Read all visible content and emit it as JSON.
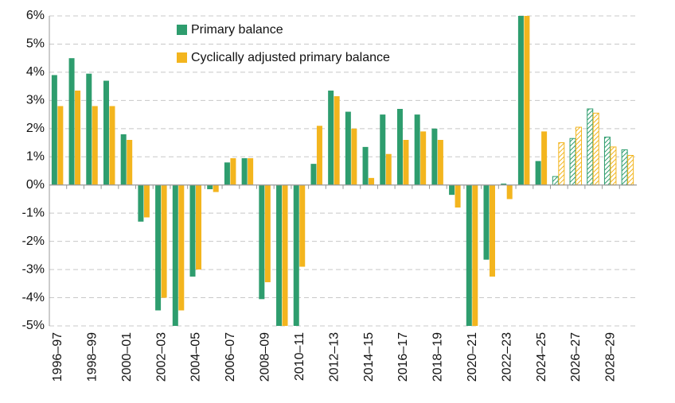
{
  "chart_data": {
    "type": "bar",
    "categories": [
      "1996–97",
      null,
      "1998–99",
      null,
      "2000–01",
      null,
      "2002–03",
      null,
      "2004–05",
      null,
      "2006–07",
      null,
      "2008–09",
      null,
      "2010–11",
      null,
      "2012–13",
      null,
      "2014–15",
      null,
      "2016–17",
      null,
      "2018–19",
      null,
      "2020–21",
      null,
      "2022–23",
      null,
      "2024–25",
      null,
      "2026–27",
      null,
      "2028–29",
      null
    ],
    "series": [
      {
        "name": "Primary balance",
        "color": "#2e9d6e",
        "values": [
          3.9,
          4.5,
          3.95,
          3.7,
          1.8,
          -1.3,
          -4.45,
          -5,
          -3.25,
          -0.15,
          0.8,
          0.95,
          -4.05,
          -5,
          -5,
          0.75,
          3.35,
          2.6,
          1.35,
          2.5,
          2.7,
          2.5,
          2.0,
          -0.35,
          -5,
          -2.65,
          0.05,
          6,
          0.85,
          0.3,
          1.65,
          2.7,
          1.7,
          1.25
        ]
      },
      {
        "name": "Cyclically adjusted primary balance",
        "color": "#f3b51e",
        "values": [
          2.8,
          3.35,
          2.8,
          2.8,
          1.6,
          -1.15,
          -4.0,
          -4.45,
          -3.0,
          -0.25,
          0.95,
          0.95,
          -3.45,
          -5,
          -2.9,
          2.1,
          3.15,
          2.0,
          0.25,
          1.1,
          1.6,
          1.9,
          1.6,
          -0.8,
          -5,
          -3.25,
          -0.5,
          6,
          1.9,
          1.5,
          2.05,
          2.55,
          1.35,
          1.05
        ]
      }
    ],
    "hatch_from": 29,
    "ylim": [
      -5,
      6
    ],
    "yticks": [
      {
        "value": -5,
        "label": "-5%"
      },
      {
        "value": -4,
        "label": "-4%"
      },
      {
        "value": -3,
        "label": "-3%"
      },
      {
        "value": -2,
        "label": "-2%"
      },
      {
        "value": -1,
        "label": "-1%"
      },
      {
        "value": 0,
        "label": "0%"
      },
      {
        "value": 1,
        "label": "1%"
      },
      {
        "value": 2,
        "label": "2%"
      },
      {
        "value": 3,
        "label": "3%"
      },
      {
        "value": 4,
        "label": "4%"
      },
      {
        "value": 5,
        "label": "5%"
      },
      {
        "value": 6,
        "label": "6%"
      }
    ],
    "grid": true,
    "legend": "top"
  }
}
